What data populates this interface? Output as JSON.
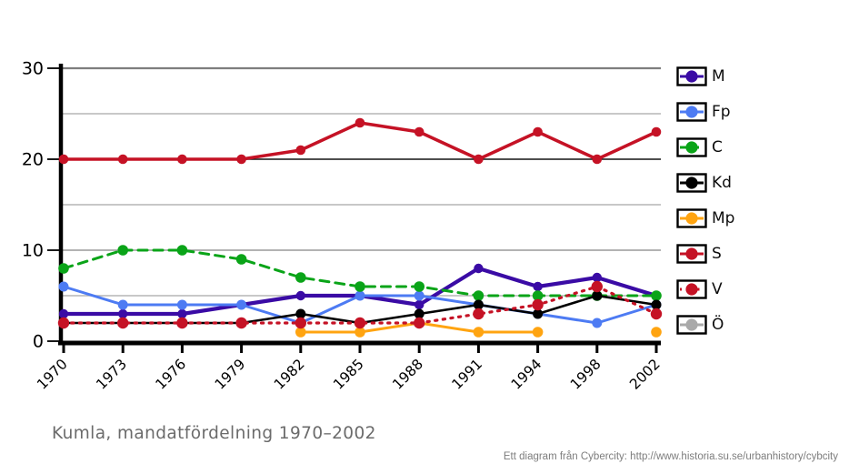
{
  "chart_data": {
    "type": "line",
    "title": "Kumla, mandatfördelning 1970–2002",
    "xlabel": "",
    "ylabel": "",
    "x_labels": [
      "1970",
      "1973",
      "1976",
      "1979",
      "1982",
      "1985",
      "1988",
      "1991",
      "1994",
      "1998",
      "2002"
    ],
    "ylim": [
      0,
      30
    ],
    "yticks": [
      0,
      10,
      20,
      30
    ],
    "gridline_values": [
      5,
      10,
      15,
      20,
      25,
      30
    ],
    "grid": true,
    "legend_position": "right",
    "series": [
      {
        "name": "M",
        "color": "#3a0ba5",
        "style": "solid",
        "values": [
          3,
          3,
          3,
          4,
          5,
          5,
          4,
          8,
          6,
          7,
          5
        ]
      },
      {
        "name": "Fp",
        "color": "#4d7bf3",
        "style": "solid",
        "values": [
          6,
          4,
          4,
          4,
          2,
          5,
          5,
          4,
          3,
          2,
          4
        ]
      },
      {
        "name": "C",
        "color": "#0aa418",
        "style": "dashed",
        "values": [
          8,
          10,
          10,
          9,
          7,
          6,
          6,
          5,
          5,
          5,
          5
        ]
      },
      {
        "name": "Kd",
        "color": "#000000",
        "style": "solid",
        "values": [
          2,
          2,
          2,
          2,
          3,
          2,
          3,
          4,
          3,
          5,
          4
        ]
      },
      {
        "name": "Mp",
        "color": "#ffa411",
        "style": "solid",
        "values": [
          null,
          null,
          null,
          null,
          1,
          1,
          2,
          1,
          1,
          null,
          1
        ]
      },
      {
        "name": "S",
        "color": "#c51225",
        "style": "solid",
        "values": [
          20,
          20,
          20,
          20,
          21,
          24,
          23,
          20,
          23,
          20,
          23
        ]
      },
      {
        "name": "V",
        "color": "#c51225",
        "style": "dotted",
        "values": [
          2,
          2,
          2,
          2,
          2,
          2,
          2,
          3,
          4,
          6,
          3
        ]
      },
      {
        "name": "Ö",
        "color": "#a9a9a9",
        "style": "solid",
        "values": [
          null,
          null,
          null,
          null,
          null,
          null,
          null,
          null,
          null,
          null,
          null
        ]
      }
    ]
  },
  "attribution": "Ett diagram från Cybercity: http://www.historia.su.se/urbanhistory/cybcity"
}
